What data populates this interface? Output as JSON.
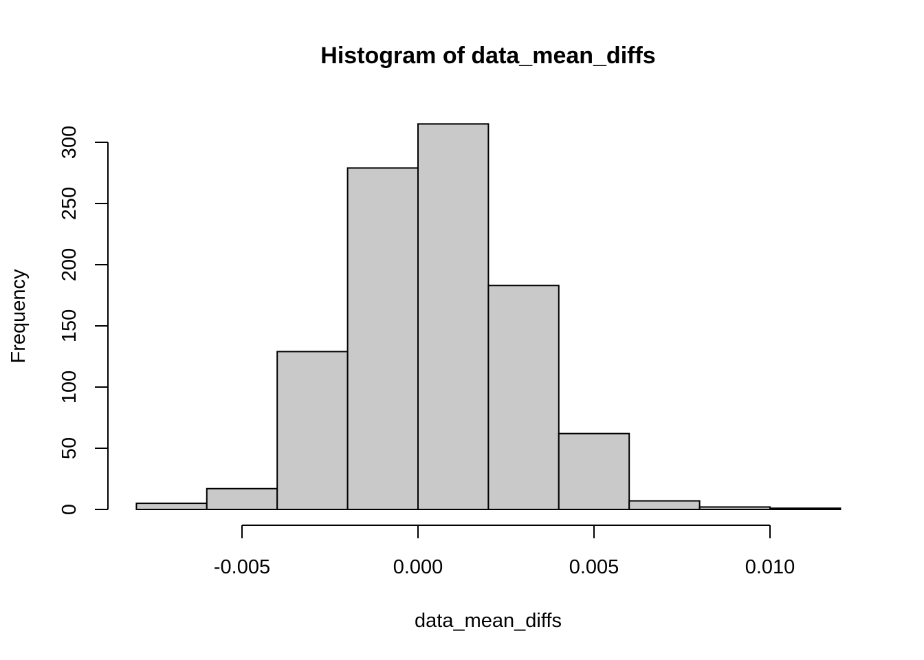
{
  "chart_data": {
    "type": "bar",
    "title": "Histogram of data_mean_diffs",
    "xlabel": "data_mean_diffs",
    "ylabel": "Frequency",
    "bins": [
      {
        "start": -0.008,
        "end": -0.006,
        "count": 5
      },
      {
        "start": -0.006,
        "end": -0.004,
        "count": 17
      },
      {
        "start": -0.004,
        "end": -0.002,
        "count": 129
      },
      {
        "start": -0.002,
        "end": 0.0,
        "count": 279
      },
      {
        "start": 0.0,
        "end": 0.002,
        "count": 315
      },
      {
        "start": 0.002,
        "end": 0.004,
        "count": 183
      },
      {
        "start": 0.004,
        "end": 0.006,
        "count": 62
      },
      {
        "start": 0.006,
        "end": 0.008,
        "count": 7
      },
      {
        "start": 0.008,
        "end": 0.01,
        "count": 2
      },
      {
        "start": 0.01,
        "end": 0.012,
        "count": 1
      }
    ],
    "x_ticks": [
      {
        "value": -0.005,
        "label": "-0.005"
      },
      {
        "value": 0.0,
        "label": "0.000"
      },
      {
        "value": 0.005,
        "label": "0.005"
      },
      {
        "value": 0.01,
        "label": "0.010"
      }
    ],
    "y_ticks": [
      {
        "value": 0,
        "label": "0"
      },
      {
        "value": 50,
        "label": "50"
      },
      {
        "value": 100,
        "label": "100"
      },
      {
        "value": 150,
        "label": "150"
      },
      {
        "value": 200,
        "label": "200"
      },
      {
        "value": 250,
        "label": "250"
      },
      {
        "value": 300,
        "label": "300"
      }
    ],
    "xlim": [
      -0.005,
      0.01
    ],
    "ylim": [
      0,
      300
    ],
    "bar_color": "#c9c9c9",
    "grid": false
  }
}
